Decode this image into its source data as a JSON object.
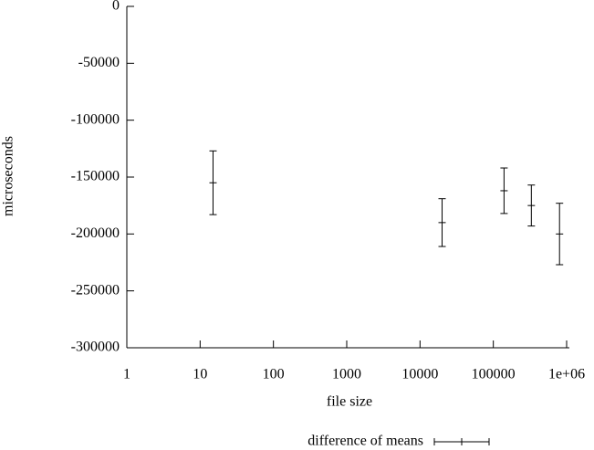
{
  "chart_data": {
    "type": "errorbar",
    "xlabel": "file size",
    "ylabel": "microseconds",
    "xscale": "log",
    "xlim": [
      1,
      1000000
    ],
    "xticks": [
      1,
      10,
      100,
      1000,
      10000,
      100000,
      {
        "value": 1000000,
        "label": "1e+06"
      }
    ],
    "ylim": [
      -300000,
      0
    ],
    "yticks": [
      0,
      -50000,
      -100000,
      -150000,
      -200000,
      -250000,
      -300000
    ],
    "series": [
      {
        "name": "difference of means",
        "color": "#000000",
        "x": [
          15,
          20000,
          140000,
          330000,
          800000
        ],
        "values": [
          -155000,
          -190000,
          -162000,
          -175000,
          -200000
        ],
        "errors": [
          28000,
          21000,
          20000,
          18000,
          27000
        ]
      }
    ]
  }
}
